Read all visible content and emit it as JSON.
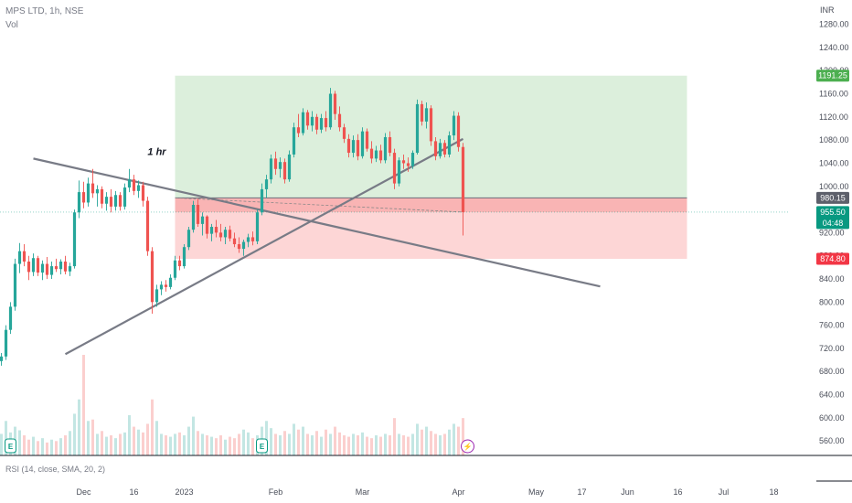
{
  "header": {
    "title": "MPS LTD, 1h, NSE",
    "volume_label": "Vol"
  },
  "rsi_label": "RSI (14, close, SMA, 20, 2)",
  "chart_data": {
    "type": "candlestick",
    "currency": "INR",
    "x_ticks": [
      {
        "label": "Dec",
        "bar": 18
      },
      {
        "label": "16",
        "bar": 29
      },
      {
        "label": "2023",
        "bar": 40
      },
      {
        "label": "Feb",
        "bar": 60
      },
      {
        "label": "Mar",
        "bar": 79
      },
      {
        "label": "Apr",
        "bar": 100
      },
      {
        "label": "May",
        "bar": 117
      },
      {
        "label": "17",
        "bar": 127
      },
      {
        "label": "Jun",
        "bar": 137
      },
      {
        "label": "16",
        "bar": 148
      },
      {
        "label": "Jul",
        "bar": 158
      },
      {
        "label": "18",
        "bar": 169
      }
    ],
    "y_ticks": [
      560,
      600,
      640,
      680,
      720,
      760,
      800,
      840,
      880,
      920,
      960,
      1000,
      1040,
      1080,
      1120,
      1160,
      1200,
      1240,
      1280
    ],
    "ylim": [
      535,
      1322
    ],
    "price_labels": {
      "target": "1191.25",
      "entry": "980.15",
      "last": "955.50",
      "countdown": "04:48",
      "stop": "874.80"
    },
    "position": {
      "entry": 980.15,
      "target": 1191.25,
      "stop": 874.8,
      "start_bar": 38,
      "end_bar": 150
    },
    "annotation": {
      "text": "1 hr",
      "bar": 34,
      "price": 1045
    },
    "trendlines": [
      {
        "name": "descending",
        "points": [
          [
            7,
            1048
          ],
          [
            131,
            827
          ]
        ]
      },
      {
        "name": "ascending",
        "points": [
          [
            14,
            710
          ],
          [
            101,
            1082
          ]
        ]
      }
    ],
    "events": [
      {
        "type": "earnings",
        "glyph": "E",
        "bar": 2
      },
      {
        "type": "earnings",
        "glyph": "E",
        "bar": 57
      },
      {
        "type": "split",
        "glyph": "⚡",
        "bar": 102
      }
    ],
    "colors": {
      "up": "#26a69a",
      "down": "#ef5350",
      "target_zone": "#dcefdc",
      "stop_zone_light": "#fdd6d6",
      "stop_zone_dark": "#f9b4b4",
      "last_price": "#089981",
      "trendline": "#787b86"
    },
    "candles": [
      {
        "bar": 0,
        "o": 698,
        "h": 712,
        "l": 690,
        "c": 706
      },
      {
        "bar": 1,
        "o": 706,
        "h": 760,
        "l": 700,
        "c": 752
      },
      {
        "bar": 2,
        "o": 752,
        "h": 800,
        "l": 745,
        "c": 792
      },
      {
        "bar": 3,
        "o": 792,
        "h": 875,
        "l": 785,
        "c": 866
      },
      {
        "bar": 4,
        "o": 866,
        "h": 902,
        "l": 850,
        "c": 888
      },
      {
        "bar": 5,
        "o": 888,
        "h": 900,
        "l": 862,
        "c": 870
      },
      {
        "bar": 6,
        "o": 870,
        "h": 880,
        "l": 838,
        "c": 852
      },
      {
        "bar": 7,
        "o": 852,
        "h": 884,
        "l": 845,
        "c": 876
      },
      {
        "bar": 8,
        "o": 876,
        "h": 880,
        "l": 845,
        "c": 851
      },
      {
        "bar": 9,
        "o": 851,
        "h": 872,
        "l": 838,
        "c": 866
      },
      {
        "bar": 10,
        "o": 866,
        "h": 878,
        "l": 840,
        "c": 847
      },
      {
        "bar": 11,
        "o": 847,
        "h": 870,
        "l": 840,
        "c": 862
      },
      {
        "bar": 12,
        "o": 862,
        "h": 875,
        "l": 852,
        "c": 857
      },
      {
        "bar": 13,
        "o": 857,
        "h": 874,
        "l": 848,
        "c": 870
      },
      {
        "bar": 14,
        "o": 870,
        "h": 880,
        "l": 848,
        "c": 853
      },
      {
        "bar": 15,
        "o": 853,
        "h": 868,
        "l": 845,
        "c": 862
      },
      {
        "bar": 16,
        "o": 862,
        "h": 960,
        "l": 858,
        "c": 955
      },
      {
        "bar": 17,
        "o": 955,
        "h": 1010,
        "l": 945,
        "c": 990
      },
      {
        "bar": 18,
        "o": 990,
        "h": 1008,
        "l": 962,
        "c": 972
      },
      {
        "bar": 19,
        "o": 972,
        "h": 1015,
        "l": 965,
        "c": 1005
      },
      {
        "bar": 20,
        "o": 1005,
        "h": 1030,
        "l": 980,
        "c": 988
      },
      {
        "bar": 21,
        "o": 988,
        "h": 1002,
        "l": 965,
        "c": 995
      },
      {
        "bar": 22,
        "o": 995,
        "h": 1000,
        "l": 962,
        "c": 970
      },
      {
        "bar": 23,
        "o": 970,
        "h": 990,
        "l": 958,
        "c": 982
      },
      {
        "bar": 24,
        "o": 982,
        "h": 995,
        "l": 955,
        "c": 965
      },
      {
        "bar": 25,
        "o": 965,
        "h": 992,
        "l": 958,
        "c": 985
      },
      {
        "bar": 26,
        "o": 985,
        "h": 990,
        "l": 958,
        "c": 965
      },
      {
        "bar": 27,
        "o": 965,
        "h": 1005,
        "l": 960,
        "c": 998
      },
      {
        "bar": 28,
        "o": 998,
        "h": 1030,
        "l": 990,
        "c": 1012
      },
      {
        "bar": 29,
        "o": 1012,
        "h": 1020,
        "l": 985,
        "c": 992
      },
      {
        "bar": 30,
        "o": 992,
        "h": 1010,
        "l": 980,
        "c": 1002
      },
      {
        "bar": 31,
        "o": 1002,
        "h": 1008,
        "l": 965,
        "c": 975
      },
      {
        "bar": 32,
        "o": 975,
        "h": 982,
        "l": 880,
        "c": 888
      },
      {
        "bar": 33,
        "o": 888,
        "h": 895,
        "l": 780,
        "c": 800
      },
      {
        "bar": 34,
        "o": 800,
        "h": 830,
        "l": 792,
        "c": 822
      },
      {
        "bar": 35,
        "o": 822,
        "h": 836,
        "l": 812,
        "c": 830
      },
      {
        "bar": 36,
        "o": 830,
        "h": 838,
        "l": 818,
        "c": 826
      },
      {
        "bar": 37,
        "o": 826,
        "h": 848,
        "l": 822,
        "c": 842
      },
      {
        "bar": 38,
        "o": 842,
        "h": 880,
        "l": 838,
        "c": 872
      },
      {
        "bar": 39,
        "o": 872,
        "h": 880,
        "l": 855,
        "c": 862
      },
      {
        "bar": 40,
        "o": 862,
        "h": 900,
        "l": 858,
        "c": 895
      },
      {
        "bar": 41,
        "o": 895,
        "h": 930,
        "l": 890,
        "c": 925
      },
      {
        "bar": 42,
        "o": 925,
        "h": 975,
        "l": 920,
        "c": 968
      },
      {
        "bar": 43,
        "o": 968,
        "h": 978,
        "l": 930,
        "c": 935
      },
      {
        "bar": 44,
        "o": 935,
        "h": 955,
        "l": 915,
        "c": 948
      },
      {
        "bar": 45,
        "o": 948,
        "h": 950,
        "l": 910,
        "c": 918
      },
      {
        "bar": 46,
        "o": 918,
        "h": 935,
        "l": 905,
        "c": 930
      },
      {
        "bar": 47,
        "o": 930,
        "h": 942,
        "l": 912,
        "c": 920
      },
      {
        "bar": 48,
        "o": 920,
        "h": 935,
        "l": 905,
        "c": 912
      },
      {
        "bar": 49,
        "o": 912,
        "h": 930,
        "l": 900,
        "c": 925
      },
      {
        "bar": 50,
        "o": 925,
        "h": 932,
        "l": 905,
        "c": 910
      },
      {
        "bar": 51,
        "o": 910,
        "h": 920,
        "l": 895,
        "c": 900
      },
      {
        "bar": 52,
        "o": 900,
        "h": 912,
        "l": 885,
        "c": 892
      },
      {
        "bar": 53,
        "o": 892,
        "h": 908,
        "l": 880,
        "c": 904
      },
      {
        "bar": 54,
        "o": 904,
        "h": 918,
        "l": 895,
        "c": 912
      },
      {
        "bar": 55,
        "o": 912,
        "h": 922,
        "l": 898,
        "c": 905
      },
      {
        "bar": 56,
        "o": 905,
        "h": 960,
        "l": 900,
        "c": 955
      },
      {
        "bar": 57,
        "o": 955,
        "h": 1005,
        "l": 950,
        "c": 995
      },
      {
        "bar": 58,
        "o": 995,
        "h": 1020,
        "l": 980,
        "c": 1012
      },
      {
        "bar": 59,
        "o": 1012,
        "h": 1055,
        "l": 1005,
        "c": 1048
      },
      {
        "bar": 60,
        "o": 1048,
        "h": 1060,
        "l": 1020,
        "c": 1030
      },
      {
        "bar": 61,
        "o": 1030,
        "h": 1050,
        "l": 1015,
        "c": 1042
      },
      {
        "bar": 62,
        "o": 1042,
        "h": 1048,
        "l": 1005,
        "c": 1012
      },
      {
        "bar": 63,
        "o": 1012,
        "h": 1062,
        "l": 1008,
        "c": 1055
      },
      {
        "bar": 64,
        "o": 1055,
        "h": 1110,
        "l": 1050,
        "c": 1102
      },
      {
        "bar": 65,
        "o": 1102,
        "h": 1125,
        "l": 1085,
        "c": 1092
      },
      {
        "bar": 66,
        "o": 1092,
        "h": 1135,
        "l": 1088,
        "c": 1128
      },
      {
        "bar": 67,
        "o": 1128,
        "h": 1132,
        "l": 1098,
        "c": 1105
      },
      {
        "bar": 68,
        "o": 1105,
        "h": 1130,
        "l": 1095,
        "c": 1120
      },
      {
        "bar": 69,
        "o": 1120,
        "h": 1125,
        "l": 1090,
        "c": 1098
      },
      {
        "bar": 70,
        "o": 1098,
        "h": 1125,
        "l": 1092,
        "c": 1118
      },
      {
        "bar": 71,
        "o": 1118,
        "h": 1130,
        "l": 1095,
        "c": 1102
      },
      {
        "bar": 72,
        "o": 1102,
        "h": 1170,
        "l": 1098,
        "c": 1160
      },
      {
        "bar": 73,
        "o": 1160,
        "h": 1165,
        "l": 1115,
        "c": 1125
      },
      {
        "bar": 74,
        "o": 1125,
        "h": 1138,
        "l": 1095,
        "c": 1102
      },
      {
        "bar": 75,
        "o": 1102,
        "h": 1108,
        "l": 1075,
        "c": 1082
      },
      {
        "bar": 76,
        "o": 1082,
        "h": 1090,
        "l": 1050,
        "c": 1058
      },
      {
        "bar": 77,
        "o": 1058,
        "h": 1088,
        "l": 1050,
        "c": 1080
      },
      {
        "bar": 78,
        "o": 1080,
        "h": 1090,
        "l": 1045,
        "c": 1052
      },
      {
        "bar": 79,
        "o": 1052,
        "h": 1102,
        "l": 1048,
        "c": 1095
      },
      {
        "bar": 80,
        "o": 1095,
        "h": 1100,
        "l": 1060,
        "c": 1065
      },
      {
        "bar": 81,
        "o": 1065,
        "h": 1078,
        "l": 1040,
        "c": 1048
      },
      {
        "bar": 82,
        "o": 1048,
        "h": 1070,
        "l": 1042,
        "c": 1062
      },
      {
        "bar": 83,
        "o": 1062,
        "h": 1072,
        "l": 1040,
        "c": 1045
      },
      {
        "bar": 84,
        "o": 1045,
        "h": 1092,
        "l": 1040,
        "c": 1085
      },
      {
        "bar": 85,
        "o": 1085,
        "h": 1095,
        "l": 1052,
        "c": 1058
      },
      {
        "bar": 86,
        "o": 1058,
        "h": 1065,
        "l": 995,
        "c": 1005
      },
      {
        "bar": 87,
        "o": 1005,
        "h": 1050,
        "l": 1000,
        "c": 1045
      },
      {
        "bar": 88,
        "o": 1045,
        "h": 1055,
        "l": 1030,
        "c": 1040
      },
      {
        "bar": 89,
        "o": 1040,
        "h": 1050,
        "l": 1025,
        "c": 1035
      },
      {
        "bar": 90,
        "o": 1035,
        "h": 1062,
        "l": 1030,
        "c": 1058
      },
      {
        "bar": 91,
        "o": 1058,
        "h": 1150,
        "l": 1055,
        "c": 1142
      },
      {
        "bar": 92,
        "o": 1142,
        "h": 1148,
        "l": 1105,
        "c": 1112
      },
      {
        "bar": 93,
        "o": 1112,
        "h": 1145,
        "l": 1100,
        "c": 1135
      },
      {
        "bar": 94,
        "o": 1135,
        "h": 1140,
        "l": 1070,
        "c": 1078
      },
      {
        "bar": 95,
        "o": 1078,
        "h": 1085,
        "l": 1045,
        "c": 1052
      },
      {
        "bar": 96,
        "o": 1052,
        "h": 1082,
        "l": 1048,
        "c": 1075
      },
      {
        "bar": 97,
        "o": 1075,
        "h": 1080,
        "l": 1050,
        "c": 1055
      },
      {
        "bar": 98,
        "o": 1055,
        "h": 1095,
        "l": 1050,
        "c": 1088
      },
      {
        "bar": 99,
        "o": 1088,
        "h": 1130,
        "l": 1080,
        "c": 1122
      },
      {
        "bar": 100,
        "o": 1122,
        "h": 1128,
        "l": 1060,
        "c": 1068
      },
      {
        "bar": 101,
        "o": 1068,
        "h": 1075,
        "l": 915,
        "c": 955.5
      }
    ],
    "volume": [
      30,
      48,
      32,
      40,
      35,
      28,
      22,
      26,
      20,
      24,
      18,
      22,
      20,
      24,
      28,
      34,
      58,
      78,
      140,
      48,
      50,
      30,
      34,
      26,
      28,
      24,
      30,
      32,
      56,
      40,
      36,
      32,
      44,
      78,
      48,
      30,
      28,
      26,
      30,
      32,
      28,
      40,
      54,
      34,
      30,
      28,
      26,
      24,
      28,
      22,
      26,
      24,
      30,
      36,
      32,
      24,
      28,
      40,
      48,
      38,
      30,
      28,
      34,
      30,
      44,
      36,
      40,
      30,
      28,
      34,
      26,
      36,
      30,
      40,
      32,
      28,
      26,
      30,
      28,
      32,
      26,
      24,
      28,
      26,
      30,
      28,
      52,
      30,
      28,
      26,
      30,
      44,
      36,
      40,
      34,
      30,
      28,
      30,
      36,
      44,
      40,
      52
    ]
  }
}
